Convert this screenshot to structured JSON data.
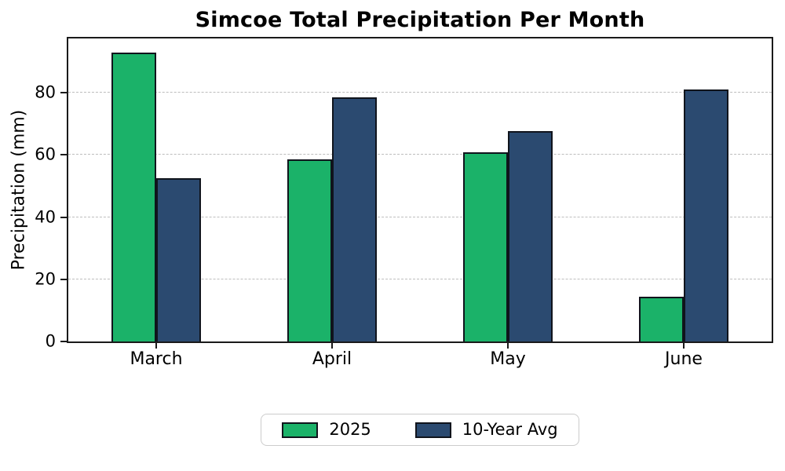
{
  "title": "Simcoe Total Precipitation Per Month",
  "chart_data": {
    "type": "bar",
    "title": "Simcoe Total Precipitation Per Month",
    "xlabel": "",
    "ylabel": "Precipitation (mm)",
    "categories": [
      "March",
      "April",
      "May",
      "June"
    ],
    "series": [
      {
        "name": "2025",
        "color": "#1bb269",
        "values": [
          93,
          58.5,
          61,
          14.5
        ]
      },
      {
        "name": "10-Year Avg",
        "color": "#2b4a70",
        "values": [
          52.5,
          78.5,
          67.8,
          81
        ]
      }
    ],
    "yticks": [
      0,
      20,
      40,
      60,
      80
    ],
    "ylim": [
      0,
      97.5
    ],
    "grid": "horizontal-dashed",
    "gridline_color": "#bdbdbd",
    "bar_edge_color": "#10141c",
    "legend_position": "bottom-center"
  }
}
